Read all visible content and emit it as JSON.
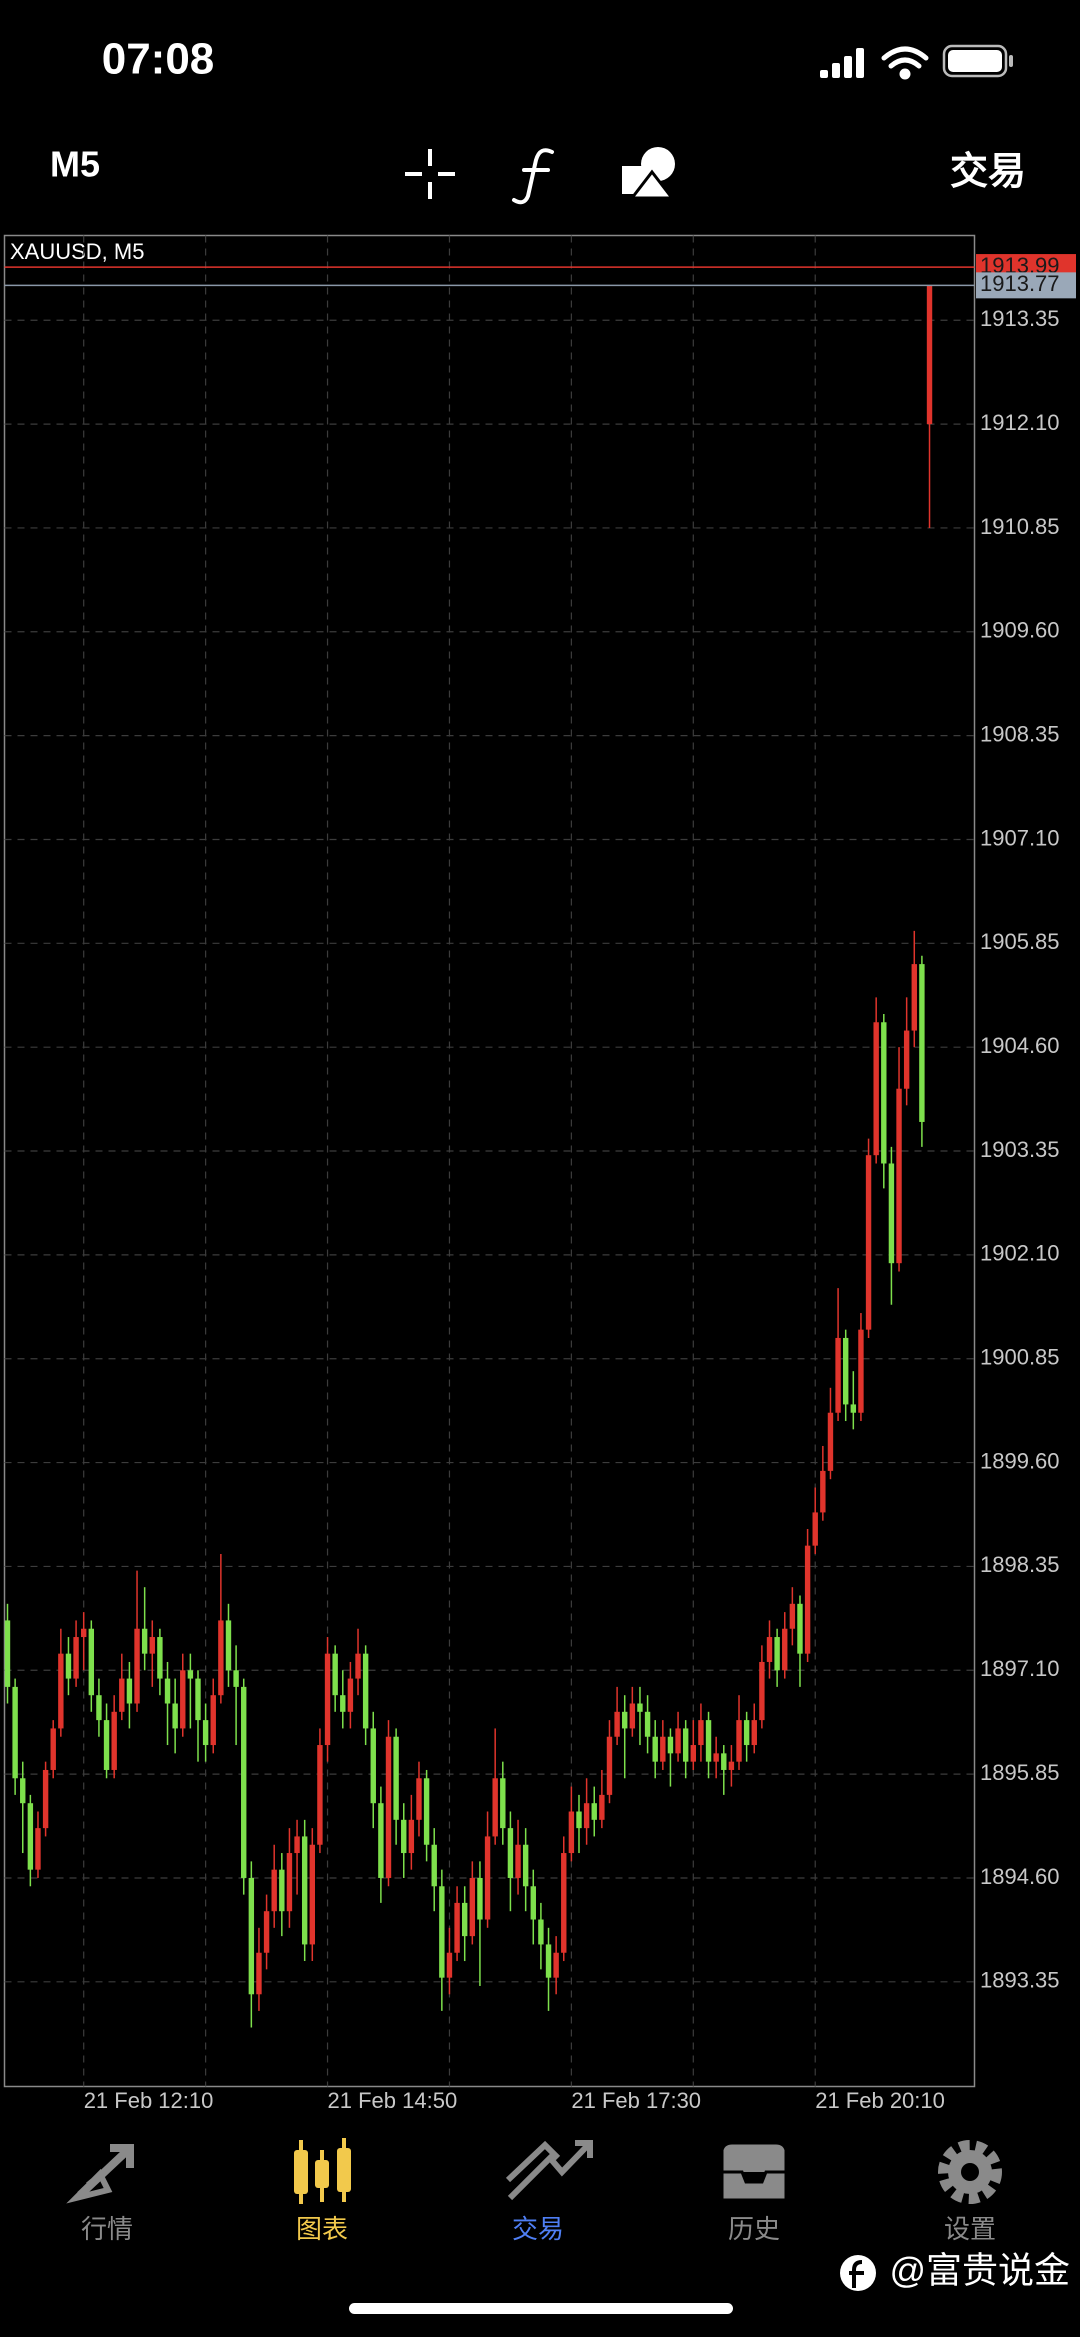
{
  "status_bar": {
    "time": "07:08"
  },
  "toolbar": {
    "timeframe": "M5",
    "trade": "交易"
  },
  "tab_bar": [
    "行情",
    "图表",
    "交易",
    "历史",
    "设置"
  ],
  "watermark": "@富贵说金",
  "chart_data": {
    "type": "candlestick",
    "title": "XAUUSD, M5",
    "categories": [
      null,
      null,
      null,
      null,
      null,
      null,
      null,
      null,
      null,
      null,
      "21 Feb 12:10",
      null,
      null,
      null,
      null,
      null,
      null,
      null,
      null,
      null,
      null,
      null,
      null,
      null,
      null,
      null,
      null,
      null,
      null,
      null,
      null,
      null,
      null,
      null,
      null,
      null,
      null,
      null,
      null,
      null,
      null,
      null,
      "21 Feb 14:50",
      null,
      null,
      null,
      null,
      null,
      null,
      null,
      null,
      null,
      null,
      null,
      null,
      null,
      null,
      null,
      null,
      null,
      null,
      null,
      null,
      null,
      null,
      null,
      null,
      null,
      null,
      null,
      null,
      null,
      null,
      null,
      "21 Feb 17:30",
      null,
      null,
      null,
      null,
      null,
      null,
      null,
      null,
      null,
      null,
      null,
      null,
      null,
      null,
      null,
      null,
      null,
      null,
      null,
      null,
      null,
      null,
      null,
      null,
      null,
      null,
      null,
      null,
      null,
      null,
      null,
      "21 Feb 20:10",
      null,
      null,
      null,
      null,
      null,
      null,
      null,
      null,
      null,
      null,
      null,
      null,
      null,
      null,
      null
    ],
    "open": [
      1897.7,
      1896.9,
      1895.8,
      1895.5,
      1894.7,
      1895.2,
      1895.9,
      1896.4,
      1897.3,
      1897.0,
      1897.5,
      1897.6,
      1896.8,
      1896.5,
      1895.9,
      1896.6,
      1897.0,
      1896.7,
      1897.6,
      1897.3,
      1897.5,
      1897.0,
      1896.7,
      1896.4,
      1897.1,
      1897.0,
      1896.5,
      1896.2,
      1896.8,
      1897.7,
      1897.1,
      1896.9,
      1894.6,
      1893.2,
      1893.7,
      1894.2,
      1894.7,
      1894.2,
      1894.9,
      1895.1,
      1893.8,
      1895.0,
      1896.2,
      1897.3,
      1896.8,
      1896.6,
      1897.0,
      1897.3,
      1896.4,
      1895.5,
      1894.6,
      1896.3,
      1895.3,
      1894.9,
      1895.3,
      1895.8,
      1895.0,
      1894.5,
      1893.4,
      1893.7,
      1894.3,
      1893.9,
      1894.6,
      1894.1,
      1895.1,
      1895.8,
      1895.2,
      1894.6,
      1895.0,
      1894.5,
      1894.1,
      1893.8,
      1893.4,
      1893.7,
      1894.9,
      1895.4,
      1895.2,
      1895.5,
      1895.3,
      1895.6,
      1896.3,
      1896.6,
      1896.4,
      1896.7,
      1896.6,
      1896.3,
      1896.0,
      1896.3,
      1896.1,
      1896.4,
      1896.0,
      1896.2,
      1896.5,
      1896.0,
      1896.1,
      1895.9,
      1896.0,
      1896.5,
      1896.2,
      1896.5,
      1897.2,
      1897.5,
      1897.1,
      1897.6,
      1897.9,
      1897.3,
      1898.6,
      1899.0,
      1899.5,
      1900.2,
      1901.1,
      1900.3,
      1900.2,
      1901.2,
      1903.3,
      1904.9,
      1903.2,
      1902.0,
      1904.1,
      1904.8,
      1905.6,
      1912.1
    ],
    "high": [
      1897.9,
      1897.0,
      1896.0,
      1895.6,
      1895.4,
      1896.0,
      1896.5,
      1897.6,
      1897.5,
      1897.7,
      1897.8,
      1897.7,
      1897.0,
      1896.7,
      1896.8,
      1897.3,
      1897.2,
      1898.3,
      1898.1,
      1897.7,
      1897.6,
      1897.2,
      1897.0,
      1897.3,
      1897.3,
      1897.1,
      1896.7,
      1897.0,
      1898.5,
      1897.9,
      1897.4,
      1897.0,
      1894.8,
      1894.0,
      1894.4,
      1895.0,
      1894.9,
      1895.2,
      1895.3,
      1895.3,
      1895.2,
      1896.4,
      1897.5,
      1897.4,
      1897.1,
      1897.2,
      1897.6,
      1897.4,
      1896.6,
      1895.7,
      1896.5,
      1896.4,
      1895.5,
      1895.6,
      1896.0,
      1895.9,
      1895.2,
      1894.7,
      1894.0,
      1894.5,
      1894.5,
      1894.8,
      1894.8,
      1895.4,
      1896.4,
      1896.0,
      1895.4,
      1895.3,
      1895.2,
      1894.7,
      1894.3,
      1894.0,
      1893.9,
      1895.1,
      1895.7,
      1895.6,
      1895.8,
      1895.7,
      1895.9,
      1896.5,
      1896.9,
      1896.8,
      1896.9,
      1896.9,
      1896.8,
      1896.5,
      1896.5,
      1896.4,
      1896.6,
      1896.5,
      1896.5,
      1896.7,
      1896.6,
      1896.3,
      1896.2,
      1896.2,
      1896.8,
      1896.6,
      1896.7,
      1897.4,
      1897.7,
      1897.6,
      1897.8,
      1898.1,
      1898.0,
      1898.8,
      1899.3,
      1899.8,
      1900.5,
      1901.7,
      1901.2,
      1900.7,
      1901.4,
      1903.5,
      1905.2,
      1905.0,
      1903.4,
      1904.6,
      1905.2,
      1906.0,
      1905.7,
      1913.77
    ],
    "low": [
      1896.7,
      1895.6,
      1894.9,
      1894.5,
      1894.6,
      1895.1,
      1895.8,
      1896.3,
      1896.8,
      1896.9,
      1897.1,
      1896.6,
      1896.3,
      1895.8,
      1895.8,
      1896.5,
      1896.4,
      1896.6,
      1897.1,
      1896.9,
      1896.8,
      1896.2,
      1896.1,
      1896.3,
      1896.4,
      1896.0,
      1896.0,
      1896.1,
      1896.7,
      1896.9,
      1896.2,
      1894.4,
      1892.8,
      1893.0,
      1893.5,
      1894.0,
      1893.9,
      1894.0,
      1894.4,
      1893.6,
      1893.6,
      1894.9,
      1896.0,
      1896.6,
      1896.4,
      1896.4,
      1896.8,
      1896.2,
      1895.2,
      1894.3,
      1894.5,
      1895.0,
      1894.6,
      1894.7,
      1895.1,
      1894.8,
      1894.2,
      1893.0,
      1893.2,
      1893.6,
      1893.6,
      1893.8,
      1893.3,
      1894.0,
      1895.0,
      1895.0,
      1894.2,
      1894.4,
      1894.2,
      1893.8,
      1893.5,
      1893.0,
      1893.2,
      1893.6,
      1894.8,
      1894.9,
      1895.0,
      1895.1,
      1895.2,
      1895.5,
      1896.2,
      1895.8,
      1896.3,
      1896.2,
      1896.1,
      1895.8,
      1895.9,
      1895.7,
      1896.0,
      1895.8,
      1895.9,
      1896.0,
      1895.8,
      1895.8,
      1895.6,
      1895.7,
      1895.9,
      1896.0,
      1896.1,
      1896.4,
      1897.0,
      1896.9,
      1897.0,
      1897.4,
      1896.9,
      1897.2,
      1898.5,
      1898.9,
      1899.4,
      1900.1,
      1900.1,
      1900.0,
      1900.1,
      1901.1,
      1903.2,
      1902.9,
      1901.5,
      1901.9,
      1903.9,
      1904.6,
      1903.4,
      1910.85
    ],
    "close": [
      1896.9,
      1895.8,
      1895.5,
      1894.7,
      1895.2,
      1895.9,
      1896.4,
      1897.3,
      1897.0,
      1897.5,
      1897.6,
      1896.8,
      1896.5,
      1895.9,
      1896.6,
      1897.0,
      1896.7,
      1897.6,
      1897.3,
      1897.5,
      1897.0,
      1896.7,
      1896.4,
      1897.1,
      1897.0,
      1896.5,
      1896.2,
      1896.8,
      1897.7,
      1897.1,
      1896.9,
      1894.6,
      1893.2,
      1893.7,
      1894.2,
      1894.7,
      1894.2,
      1894.9,
      1895.1,
      1893.8,
      1895.0,
      1896.2,
      1897.3,
      1896.8,
      1896.6,
      1897.0,
      1897.3,
      1896.4,
      1895.5,
      1894.6,
      1896.3,
      1895.3,
      1894.9,
      1895.3,
      1895.8,
      1895.0,
      1894.5,
      1893.4,
      1893.7,
      1894.3,
      1893.9,
      1894.6,
      1894.1,
      1895.1,
      1895.8,
      1895.2,
      1894.6,
      1895.0,
      1894.5,
      1894.1,
      1893.8,
      1893.4,
      1893.7,
      1894.9,
      1895.4,
      1895.2,
      1895.5,
      1895.3,
      1895.6,
      1896.3,
      1896.6,
      1896.4,
      1896.7,
      1896.6,
      1896.3,
      1896.0,
      1896.3,
      1896.1,
      1896.4,
      1896.0,
      1896.2,
      1896.5,
      1896.0,
      1896.1,
      1895.9,
      1896.0,
      1896.5,
      1896.2,
      1896.5,
      1897.2,
      1897.5,
      1897.1,
      1897.6,
      1897.9,
      1897.3,
      1898.6,
      1899.0,
      1899.5,
      1900.2,
      1901.1,
      1900.3,
      1900.2,
      1901.2,
      1903.3,
      1904.9,
      1903.2,
      1902.0,
      1904.1,
      1904.8,
      1905.6,
      1903.7,
      1913.77
    ],
    "up_color": "#e0342c",
    "down_color": "#7ee04c",
    "ylim": [
      1892.09,
      1914.37
    ],
    "yticks": [
      1893.35,
      {
        "value": 1894.6,
        "label": "1894.60"
      },
      1895.85,
      {
        "value": 1897.1,
        "label": "1897.10"
      },
      1898.35,
      {
        "value": 1899.6,
        "label": "1899.60"
      },
      1900.85,
      {
        "value": 1902.1,
        "label": "1902.10"
      },
      1903.35,
      {
        "value": 1904.6,
        "label": "1904.60"
      },
      1905.85,
      {
        "value": 1907.1,
        "label": "1907.10"
      },
      1908.35,
      {
        "value": 1909.6,
        "label": "1909.60"
      },
      1910.85,
      {
        "value": 1912.1,
        "label": "1912.10"
      },
      1913.35
    ],
    "grid": true,
    "ask": 1913.99,
    "bid": 1913.77
  }
}
